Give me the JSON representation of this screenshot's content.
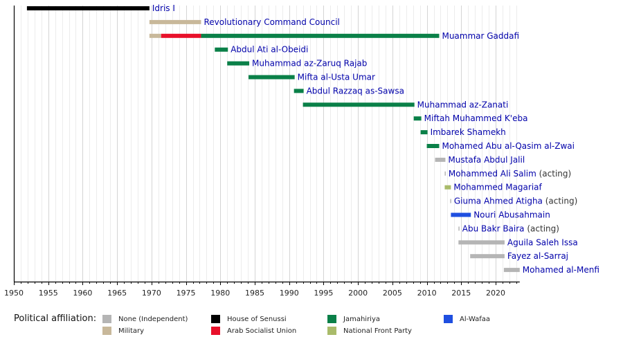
{
  "chart_data": {
    "type": "timeline",
    "title": "",
    "xlabel": "",
    "ylabel": "",
    "xlim": [
      1950,
      2023.5
    ],
    "grid": true,
    "x_ticks": [
      "1950",
      "1955",
      "1960",
      "1965",
      "1970",
      "1975",
      "1980",
      "1985",
      "1990",
      "1995",
      "2000",
      "2005",
      "2010",
      "2015",
      "2020"
    ],
    "colors": {
      "none": "#b5b5b5",
      "military": "#c8b89a",
      "senussi": "#000000",
      "asu": "#e8102a",
      "jamahiriya": "#0a8048",
      "nfp": "#a9bb6a",
      "wafaa": "#1f4fe0"
    },
    "rows": [
      {
        "name": "Idris I",
        "note": "",
        "segments": [
          {
            "start": 1951.9,
            "end": 1969.7,
            "party": "senussi"
          }
        ]
      },
      {
        "name": "Revolutionary Command Council",
        "note": "",
        "segments": [
          {
            "start": 1969.7,
            "end": 1977.2,
            "party": "military"
          }
        ]
      },
      {
        "name": "Muammar Gaddafi",
        "note": "",
        "segments": [
          {
            "start": 1969.7,
            "end": 1971.4,
            "party": "military"
          },
          {
            "start": 1971.4,
            "end": 1977.2,
            "party": "asu"
          },
          {
            "start": 1977.2,
            "end": 2011.8,
            "party": "jamahiriya"
          }
        ]
      },
      {
        "name": "Abdul Ati al-Obeidi",
        "note": "",
        "segments": [
          {
            "start": 1979.2,
            "end": 1981.1,
            "party": "jamahiriya"
          }
        ]
      },
      {
        "name": "Muhammad az-Zaruq Rajab",
        "note": "",
        "segments": [
          {
            "start": 1981.0,
            "end": 1984.2,
            "party": "jamahiriya"
          }
        ]
      },
      {
        "name": "Mifta al-Usta Umar",
        "note": "",
        "segments": [
          {
            "start": 1984.1,
            "end": 1990.8,
            "party": "jamahiriya"
          }
        ]
      },
      {
        "name": "Abdul Razzaq as-Sawsa",
        "note": "",
        "segments": [
          {
            "start": 1990.7,
            "end": 1992.1,
            "party": "jamahiriya"
          }
        ]
      },
      {
        "name": "Muhammad az-Zanati",
        "note": "",
        "segments": [
          {
            "start": 1992.0,
            "end": 2008.2,
            "party": "jamahiriya"
          }
        ]
      },
      {
        "name": "Miftah Muhammed K'eba",
        "note": "",
        "segments": [
          {
            "start": 2008.1,
            "end": 2009.2,
            "party": "jamahiriya"
          }
        ]
      },
      {
        "name": "Imbarek Shamekh",
        "note": "",
        "segments": [
          {
            "start": 2009.1,
            "end": 2010.1,
            "party": "jamahiriya"
          }
        ]
      },
      {
        "name": "Mohamed Abu al-Qasim al-Zwai",
        "note": "",
        "segments": [
          {
            "start": 2010.0,
            "end": 2011.8,
            "party": "jamahiriya"
          }
        ]
      },
      {
        "name": "Mustafa Abdul Jalil",
        "note": "",
        "segments": [
          {
            "start": 2011.2,
            "end": 2012.7,
            "party": "none"
          }
        ]
      },
      {
        "name": "Mohammed Ali Salim",
        "note": "(acting)",
        "segments": [
          {
            "start": 2012.6,
            "end": 2012.75,
            "party": "none"
          }
        ]
      },
      {
        "name": "Mohammed Magariaf",
        "note": "",
        "segments": [
          {
            "start": 2012.6,
            "end": 2013.5,
            "party": "nfp"
          }
        ]
      },
      {
        "name": "Giuma Ahmed Atigha",
        "note": "(acting)",
        "segments": [
          {
            "start": 2013.4,
            "end": 2013.55,
            "party": "none"
          }
        ]
      },
      {
        "name": "Nouri Abusahmain",
        "note": "",
        "segments": [
          {
            "start": 2013.5,
            "end": 2016.4,
            "party": "wafaa"
          }
        ]
      },
      {
        "name": "Abu Bakr Baira",
        "note": "(acting)",
        "segments": [
          {
            "start": 2014.6,
            "end": 2014.75,
            "party": "none"
          }
        ]
      },
      {
        "name": "Aguila Saleh Issa",
        "note": "",
        "segments": [
          {
            "start": 2014.6,
            "end": 2021.3,
            "party": "none"
          }
        ]
      },
      {
        "name": "Fayez al-Sarraj",
        "note": "",
        "segments": [
          {
            "start": 2016.3,
            "end": 2021.3,
            "party": "none"
          }
        ]
      },
      {
        "name": "Mohamed al-Menfi",
        "note": "",
        "segments": [
          {
            "start": 2021.2,
            "end": 2023.5,
            "party": "none"
          }
        ]
      }
    ],
    "legend": {
      "title": "Political affiliation:",
      "items": [
        {
          "key": "none",
          "label": "None (Independent)"
        },
        {
          "key": "military",
          "label": "Military"
        },
        {
          "key": "senussi",
          "label": "House of Senussi"
        },
        {
          "key": "asu",
          "label": "Arab Socialist Union"
        },
        {
          "key": "jamahiriya",
          "label": "Jamahiriya"
        },
        {
          "key": "nfp",
          "label": "National Front Party"
        },
        {
          "key": "wafaa",
          "label": "Al-Wafaa"
        }
      ]
    }
  }
}
